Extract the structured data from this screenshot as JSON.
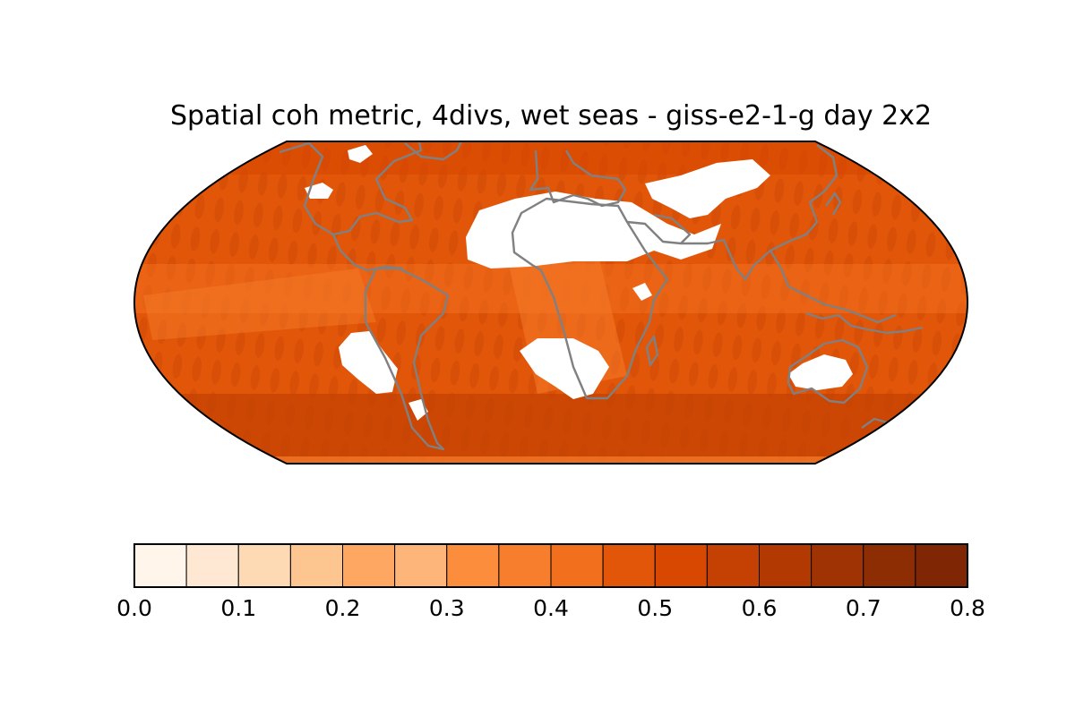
{
  "title": "Spatial coh metric, 4divs, wet seas - giss-e2-1-g day 2x2",
  "map": {
    "projection": "robinson",
    "coastline_color": "#808080",
    "masked_color": "#ffffff"
  },
  "colorbar": {
    "min": 0.0,
    "max": 0.8,
    "step": 0.05,
    "tick_labels": [
      "0.0",
      "0.1",
      "0.2",
      "0.3",
      "0.4",
      "0.5",
      "0.6",
      "0.7",
      "0.8"
    ],
    "colors": [
      "#fff5eb",
      "#fee8d3",
      "#fdd9b4",
      "#fdc590",
      "#fda762",
      "#fb8d3d",
      "#f2701d",
      "#e25609",
      "#c44103",
      "#9f3303",
      "#7f2704",
      "#fdb57a",
      "#f67e2c",
      "#d84801",
      "#b23902",
      "#8c2d04"
    ],
    "palette_order": [
      0,
      1,
      2,
      3,
      4,
      11,
      5,
      12,
      6,
      7,
      13,
      8,
      14,
      9,
      15,
      10
    ]
  }
}
